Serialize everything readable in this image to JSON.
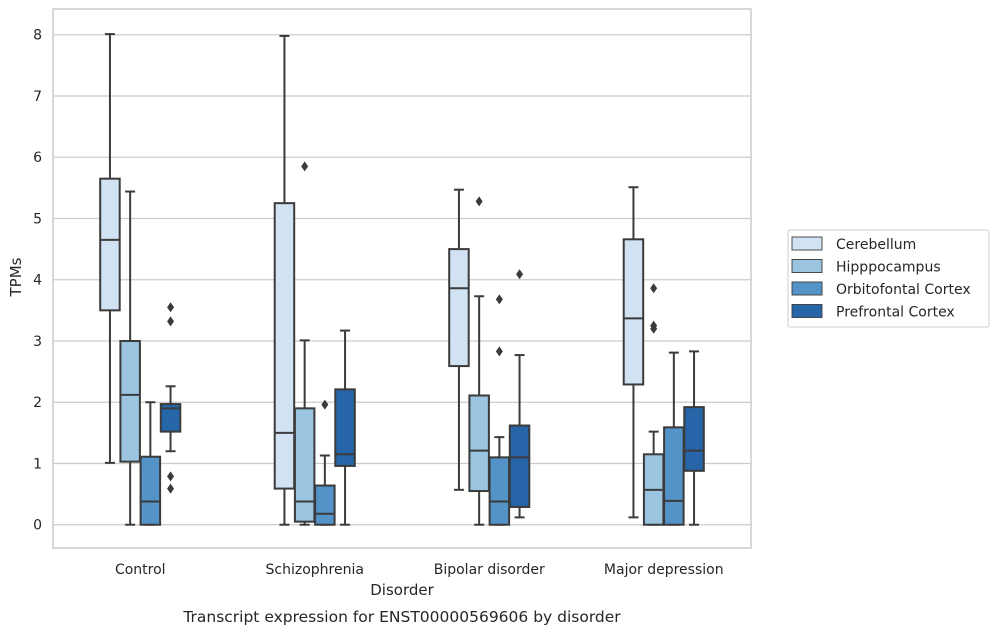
{
  "caption": "Transcript expression for ENST00000569606 by disorder",
  "chart_data": {
    "type": "box",
    "title": "",
    "xlabel": "Disorder",
    "ylabel": "TPMs",
    "ylim": [
      -0.38,
      8.42
    ],
    "yticks": [
      "0",
      "1",
      "2",
      "3",
      "4",
      "5",
      "6",
      "7",
      "8"
    ],
    "grid": true,
    "legend_position": "right",
    "categories": [
      "Control",
      "Schizophrenia",
      "Bipolar disorder",
      "Major depression"
    ],
    "series": [
      {
        "name": "Cerebellum",
        "color": "#d1e2f2",
        "boxes": [
          {
            "whislo": 1.01,
            "q1": 3.5,
            "med": 4.65,
            "q3": 5.65,
            "whishi": 8.01,
            "fliers": []
          },
          {
            "whislo": 0.0,
            "q1": 0.59,
            "med": 1.5,
            "q3": 5.25,
            "whishi": 7.98,
            "fliers": []
          },
          {
            "whislo": 0.57,
            "q1": 2.59,
            "med": 3.86,
            "q3": 4.5,
            "whishi": 5.47,
            "fliers": []
          },
          {
            "whislo": 0.12,
            "q1": 2.29,
            "med": 3.37,
            "q3": 4.66,
            "whishi": 5.51,
            "fliers": []
          }
        ]
      },
      {
        "name": "Hipppocampus",
        "color": "#9ac4df",
        "boxes": [
          {
            "whislo": 0.0,
            "q1": 1.03,
            "med": 2.12,
            "q3": 3.0,
            "whishi": 5.44,
            "fliers": []
          },
          {
            "whislo": 0.0,
            "q1": 0.05,
            "med": 0.38,
            "q3": 1.9,
            "whishi": 3.01,
            "fliers": [
              5.85
            ]
          },
          {
            "whislo": 0.0,
            "q1": 0.55,
            "med": 1.21,
            "q3": 2.11,
            "whishi": 3.73,
            "fliers": [
              5.28
            ]
          },
          {
            "whislo": 0.0,
            "q1": 0.0,
            "med": 0.57,
            "q3": 1.15,
            "whishi": 1.52,
            "fliers": [
              3.86,
              3.25,
              3.2
            ]
          }
        ]
      },
      {
        "name": "Orbitofontal Cortex",
        "color": "#5393c7",
        "boxes": [
          {
            "whislo": 0.0,
            "q1": 0.0,
            "med": 0.38,
            "q3": 1.11,
            "whishi": 2.0,
            "fliers": []
          },
          {
            "whislo": 0.0,
            "q1": 0.0,
            "med": 0.18,
            "q3": 0.64,
            "whishi": 1.13,
            "fliers": [
              1.96
            ]
          },
          {
            "whislo": 0.0,
            "q1": 0.0,
            "med": 0.38,
            "q3": 1.1,
            "whishi": 1.43,
            "fliers": [
              3.68,
              2.83
            ]
          },
          {
            "whislo": 0.0,
            "q1": 0.0,
            "med": 0.39,
            "q3": 1.59,
            "whishi": 2.81,
            "fliers": []
          }
        ]
      },
      {
        "name": "Prefrontal Cortex",
        "color": "#2665a8",
        "boxes": [
          {
            "whislo": 1.2,
            "q1": 1.52,
            "med": 1.9,
            "q3": 1.97,
            "whishi": 2.26,
            "fliers": [
              3.55,
              3.32,
              0.79,
              0.59
            ]
          },
          {
            "whislo": 0.0,
            "q1": 0.96,
            "med": 1.15,
            "q3": 2.21,
            "whishi": 3.17,
            "fliers": []
          },
          {
            "whislo": 0.12,
            "q1": 0.29,
            "med": 1.1,
            "q3": 1.62,
            "whishi": 2.77,
            "fliers": [
              4.09
            ]
          },
          {
            "whislo": 0.0,
            "q1": 0.88,
            "med": 1.21,
            "q3": 1.92,
            "whishi": 2.83,
            "fliers": []
          }
        ]
      }
    ],
    "colors": {
      "frame": "#cccccc",
      "grid": "#cccccc",
      "line": "#3b3b3b",
      "background": "#ffffff"
    }
  }
}
